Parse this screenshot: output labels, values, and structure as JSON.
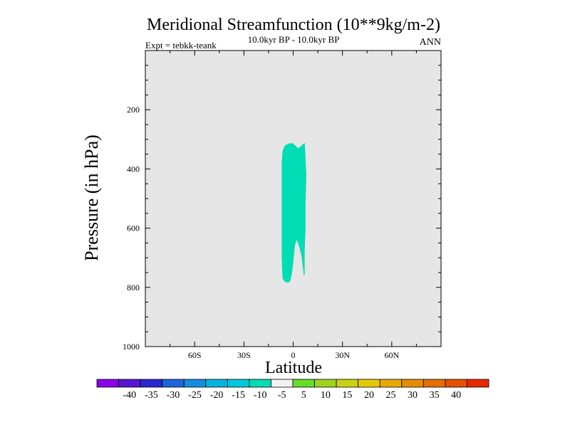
{
  "chart_data": {
    "type": "contour",
    "title": "Meridional Streamfunction (10**9kg/m-2)",
    "subtitle": "10.0kyr BP - 10.0kyr BP",
    "experiment": "Expt = tebkk-teank",
    "season": "ANN",
    "xlabel": "Latitude",
    "ylabel": "Pressure (in hPa)",
    "xlim": [
      -90,
      90
    ],
    "ylim": [
      1000,
      0
    ],
    "x_ticks": [
      {
        "value": -60,
        "label": "60S"
      },
      {
        "value": -30,
        "label": "30S"
      },
      {
        "value": 0,
        "label": "0"
      },
      {
        "value": 30,
        "label": "30N"
      },
      {
        "value": 60,
        "label": "60N"
      }
    ],
    "y_ticks": [
      {
        "value": 200,
        "label": "200"
      },
      {
        "value": 400,
        "label": "400"
      },
      {
        "value": 600,
        "label": "600"
      },
      {
        "value": 800,
        "label": "800"
      },
      {
        "value": 1000,
        "label": "1000"
      }
    ],
    "background_color": "#e6e6e6",
    "region": {
      "level_range": "-5 to -10",
      "color": "#00dcb4",
      "lat_range": [
        -7,
        8
      ],
      "pressure_range": [
        312,
        785
      ]
    },
    "colorbar": {
      "colors": [
        "#8a00e6",
        "#5a14d2",
        "#2828d2",
        "#1e64dc",
        "#148cdc",
        "#00b4dc",
        "#00c8dc",
        "#00dcb4",
        "#f2f2f2",
        "#64dc28",
        "#a0d21e",
        "#c8d214",
        "#e6c800",
        "#e6aa00",
        "#e68c00",
        "#e66e00",
        "#e65000",
        "#e62800"
      ],
      "labels": [
        "-40",
        "-35",
        "-30",
        "-25",
        "-20",
        "-15",
        "-10",
        "-5",
        "5",
        "10",
        "15",
        "20",
        "25",
        "30",
        "35",
        "40"
      ]
    }
  }
}
